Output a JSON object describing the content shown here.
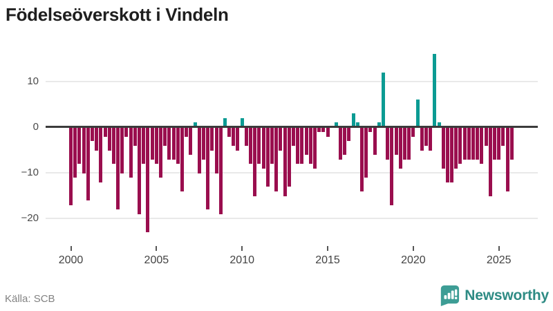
{
  "title": "Födelseöverskott i Vindeln",
  "source": {
    "label": "Källa: SCB"
  },
  "branding": {
    "name": "Newsworthy",
    "icon": "newsworthy-speech-bubble-chart-icon",
    "icon_color": "#3d9d95",
    "text_color": "#2e8b84"
  },
  "chart_data": {
    "type": "bar",
    "title": "Födelseöverskott i Vindeln",
    "frequency": "quarterly",
    "x_start_year": 2000,
    "x_end_year": 2025,
    "xlabel": "",
    "ylabel": "",
    "grid": true,
    "legend_position": "none",
    "y_ticks": [
      10,
      0,
      -10,
      -20
    ],
    "ylim": [
      -26,
      18
    ],
    "x_tick_years": [
      2000,
      2005,
      2010,
      2015,
      2020,
      2025
    ],
    "colors": {
      "positive": "#0b9b93",
      "negative": "#9a0e4e",
      "gridline": "#e9e9e9",
      "zero_line": "#3b3b3b"
    },
    "values": [
      -17,
      -11,
      -8,
      -10,
      -16,
      -3,
      -5,
      -12,
      -2,
      -5,
      -8,
      -18,
      -10,
      -2,
      -11,
      -4,
      -19,
      -8,
      -23,
      -7,
      -8,
      -11,
      -4,
      -7,
      -7,
      -8,
      -14,
      -2,
      -6,
      1,
      -10,
      -7,
      -18,
      -5,
      -10,
      -19,
      2,
      -2,
      -4,
      -5,
      2,
      -4,
      -8,
      -15,
      -8,
      -9,
      -13,
      -8,
      -14,
      -5,
      -15,
      -13,
      -4,
      -8,
      -8,
      -6,
      -8,
      -9,
      -1,
      -1,
      -2,
      0,
      1,
      -7,
      -6,
      -3,
      3,
      1,
      -14,
      -11,
      -1,
      -6,
      1,
      12,
      -7,
      -17,
      -6,
      -9,
      -7,
      -7,
      -2,
      6,
      -5,
      -4,
      -5,
      16,
      1,
      -9,
      -12,
      -12,
      -9,
      -8,
      -7,
      -7,
      -7,
      -7,
      -8,
      -4,
      -15,
      -7,
      -7,
      -4,
      -14,
      -7
    ]
  }
}
